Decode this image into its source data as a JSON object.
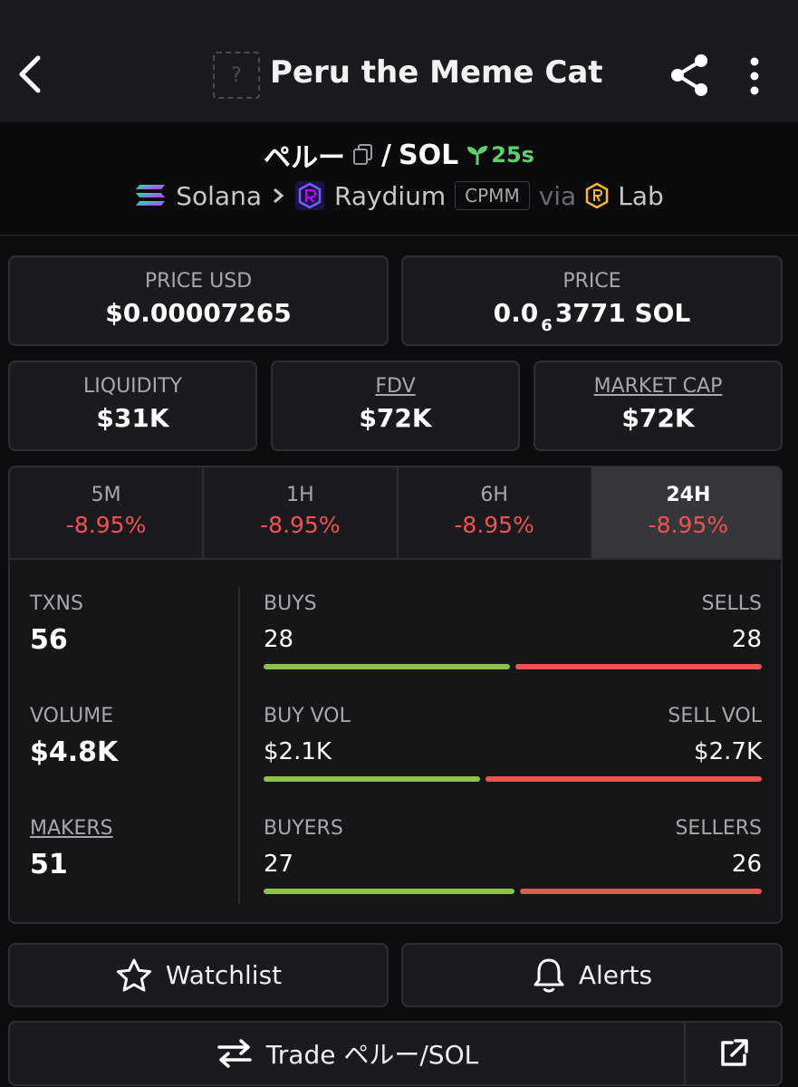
{
  "app": {
    "title": "Peru the Meme Cat",
    "token_logo_placeholder": "?"
  },
  "pair": {
    "base": "ペルー",
    "separator": "/",
    "quote": "SOL",
    "age": "25s",
    "chain": "Solana",
    "dex": "Raydium",
    "dex_tag": "CPMM",
    "via_label": "via",
    "launchpad": "Lab"
  },
  "price": {
    "usd_label": "PRICE USD",
    "usd_value": "$0.00007265",
    "native_label": "PRICE",
    "native_prefix": "0.0",
    "native_zeros": "6",
    "native_suffix": "3771 SOL"
  },
  "metrics": {
    "liquidity_label": "LIQUIDITY",
    "liquidity_value": "$31K",
    "fdv_label": "FDV",
    "fdv_value": "$72K",
    "mcap_label": "MARKET CAP",
    "mcap_value": "$72K"
  },
  "timeframes": [
    {
      "label": "5M",
      "change": "-8.95%"
    },
    {
      "label": "1H",
      "change": "-8.95%"
    },
    {
      "label": "6H",
      "change": "-8.95%"
    },
    {
      "label": "24H",
      "change": "-8.95%",
      "active": true
    }
  ],
  "stats": {
    "txns_label": "TXNS",
    "txns_value": "56",
    "volume_label": "VOLUME",
    "volume_value": "$4.8K",
    "makers_label": "MAKERS",
    "makers_value": "51",
    "buys_label": "BUYS",
    "buys_value": "28",
    "sells_label": "SELLS",
    "sells_value": "28",
    "buys_ratio": 0.5,
    "buyvol_label": "BUY VOL",
    "buyvol_value": "$2.1K",
    "sellvol_label": "SELL VOL",
    "sellvol_value": "$2.7K",
    "buyvol_ratio": 0.44,
    "buyers_label": "BUYERS",
    "buyers_value": "27",
    "sellers_label": "SELLERS",
    "sellers_value": "26",
    "buyers_ratio": 0.51
  },
  "actions": {
    "watchlist_label": "Watchlist",
    "alerts_label": "Alerts",
    "trade_label": "Trade ペルー/SOL"
  },
  "colors": {
    "positive": "#8bc34a",
    "negative": "#ef5350",
    "age_green": "#5fcf6a"
  }
}
